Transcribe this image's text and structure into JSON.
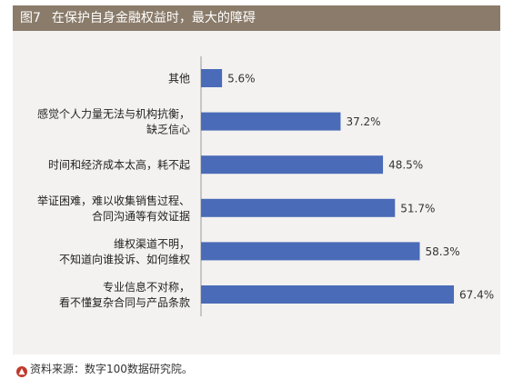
{
  "figure": {
    "number": "图7",
    "title": "在保护自身金融权益时，最大的障碍"
  },
  "source": {
    "icon": "arrow-up-circle-icon",
    "text": "资料来源：数字100数据研究院。"
  },
  "colors": {
    "bar": "#4a6bb8",
    "title_bar": "#8a7b6a",
    "panel": "#f3f2f0",
    "axis": "#9a9a9a"
  },
  "chart_data": {
    "type": "bar",
    "orientation": "horizontal",
    "title": "在保护自身金融权益时，最大的障碍",
    "xlabel": "",
    "ylabel": "",
    "xlim": [
      0,
      80
    ],
    "grid": false,
    "unit": "%",
    "categories": [
      [
        "其他"
      ],
      [
        "感觉个人力量无法与机构抗衡，",
        "缺乏信心"
      ],
      [
        "时间和经济成本太高，耗不起"
      ],
      [
        "举证困难，难以收集销售过程、",
        "合同沟通等有效证据"
      ],
      [
        "维权渠道不明，",
        "不知道向谁投诉、如何维权"
      ],
      [
        "专业信息不对称，",
        "看不懂复杂合同与产品条款"
      ]
    ],
    "values": [
      5.6,
      37.2,
      48.5,
      51.7,
      58.3,
      67.4
    ],
    "value_labels": [
      "5.6%",
      "37.2%",
      "48.5%",
      "51.7%",
      "58.3%",
      "67.4%"
    ]
  }
}
